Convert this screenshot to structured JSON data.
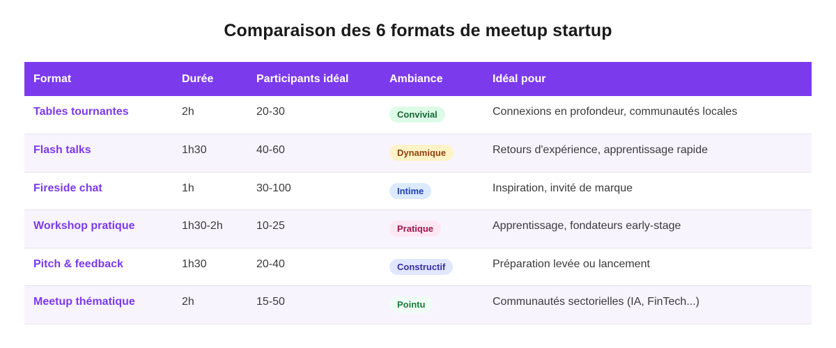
{
  "title": "Comparaison des 6 formats de meetup startup",
  "table": {
    "headers": {
      "format": "Format",
      "duree": "Durée",
      "participants": "Participants idéal",
      "ambiance": "Ambiance",
      "ideal": "Idéal pour"
    },
    "rows": [
      {
        "format": "Tables tournantes",
        "duree": "2h",
        "participants": "20-30",
        "ambiance": "Convivial",
        "ambiance_bg": "#dcfce7",
        "ambiance_fg": "#166534",
        "ideal": "Connexions en profondeur, communautés locales"
      },
      {
        "format": "Flash talks",
        "duree": "1h30",
        "participants": "40-60",
        "ambiance": "Dynamique",
        "ambiance_bg": "#fef3c7",
        "ambiance_fg": "#92400e",
        "ideal": "Retours d'expérience, apprentissage rapide"
      },
      {
        "format": "Fireside chat",
        "duree": "1h",
        "participants": "30-100",
        "ambiance": "Intime",
        "ambiance_bg": "#dbeafe",
        "ambiance_fg": "#1e40af",
        "ideal": "Inspiration, invité de marque"
      },
      {
        "format": "Workshop pratique",
        "duree": "1h30-2h",
        "participants": "10-25",
        "ambiance": "Pratique",
        "ambiance_bg": "#fce7f3",
        "ambiance_fg": "#9d174d",
        "ideal": "Apprentissage, fondateurs early-stage"
      },
      {
        "format": "Pitch & feedback",
        "duree": "1h30",
        "participants": "20-40",
        "ambiance": "Constructif",
        "ambiance_bg": "#e0e7ff",
        "ambiance_fg": "#3730a3",
        "ideal": "Préparation levée ou lancement"
      },
      {
        "format": "Meetup thématique",
        "duree": "2h",
        "participants": "15-50",
        "ambiance": "Pointu",
        "ambiance_bg": "#f0fdf4",
        "ambiance_fg": "#15803d",
        "ideal": "Communautés sectorielles (IA, FinTech...)"
      }
    ]
  },
  "colors": {
    "accent": "#7c3aed",
    "row_alt": "#f8f4fe"
  }
}
